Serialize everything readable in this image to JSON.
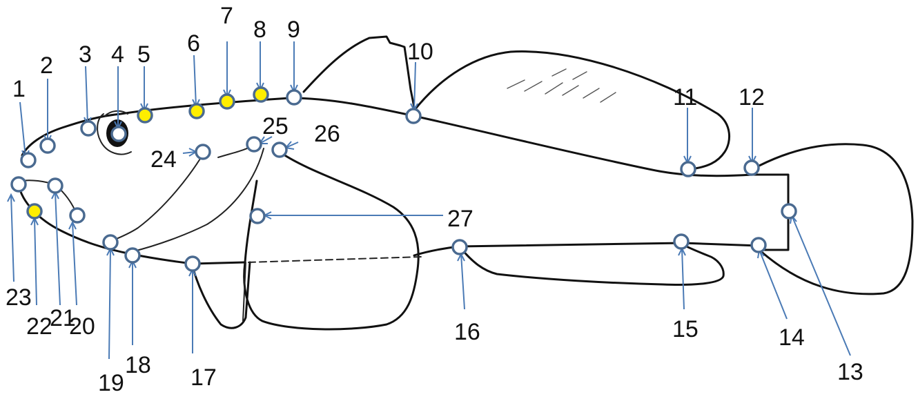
{
  "landmarks": [
    {
      "n": "1",
      "filled": false
    },
    {
      "n": "2",
      "filled": false
    },
    {
      "n": "3",
      "filled": false
    },
    {
      "n": "4",
      "filled": false
    },
    {
      "n": "5",
      "filled": true
    },
    {
      "n": "6",
      "filled": true
    },
    {
      "n": "7",
      "filled": true
    },
    {
      "n": "8",
      "filled": true
    },
    {
      "n": "9",
      "filled": false
    },
    {
      "n": "10",
      "filled": false
    },
    {
      "n": "11",
      "filled": false
    },
    {
      "n": "12",
      "filled": false
    },
    {
      "n": "13",
      "filled": false
    },
    {
      "n": "14",
      "filled": false
    },
    {
      "n": "15",
      "filled": false
    },
    {
      "n": "16",
      "filled": false
    },
    {
      "n": "17",
      "filled": false
    },
    {
      "n": "18",
      "filled": false
    },
    {
      "n": "19",
      "filled": false
    },
    {
      "n": "20",
      "filled": false
    },
    {
      "n": "21",
      "filled": false
    },
    {
      "n": "22",
      "filled": true
    },
    {
      "n": "23",
      "filled": false
    },
    {
      "n": "24",
      "filled": false
    },
    {
      "n": "25",
      "filled": false
    },
    {
      "n": "26",
      "filled": false
    },
    {
      "n": "27",
      "filled": false
    }
  ],
  "colors": {
    "marker_stroke": "#4a6a90",
    "marker_fill_open": "#ffffff",
    "marker_fill_highlight": "#ffee00",
    "arrow": "#4a7ab5"
  }
}
